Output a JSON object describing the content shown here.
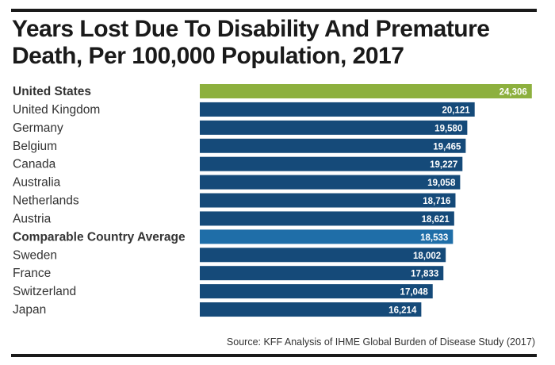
{
  "title": "Years Lost Due To Disability And Premature Death, Per 100,000 Population, 2017",
  "source": "Source: KFF Analysis of IHME Global Burden of Disease Study (2017)",
  "colors": {
    "highlight_us": "#8db03e",
    "highlight_avg": "#1f6ea8",
    "default_bar": "#154a79",
    "text": "#333333"
  },
  "chart_data": {
    "type": "bar",
    "orientation": "horizontal",
    "categories": [
      "United States",
      "United Kingdom",
      "Germany",
      "Belgium",
      "Canada",
      "Australia",
      "Netherlands",
      "Austria",
      "Comparable Country Average",
      "Sweden",
      "France",
      "Switzerland",
      "Japan"
    ],
    "values": [
      24306,
      20121,
      19580,
      19465,
      19227,
      19058,
      18716,
      18621,
      18533,
      18002,
      17833,
      17048,
      16214
    ],
    "value_labels": [
      "24,306",
      "20,121",
      "19,580",
      "19,465",
      "19,227",
      "19,058",
      "18,716",
      "18,621",
      "18,533",
      "18,002",
      "17,833",
      "17,048",
      "16,214"
    ],
    "bold_categories": [
      "United States",
      "Comparable Country Average"
    ],
    "title": "Years Lost Due To Disability And Premature Death, Per 100,000 Population, 2017",
    "xlabel": "",
    "ylabel": "",
    "grid": false,
    "legend": "none"
  }
}
